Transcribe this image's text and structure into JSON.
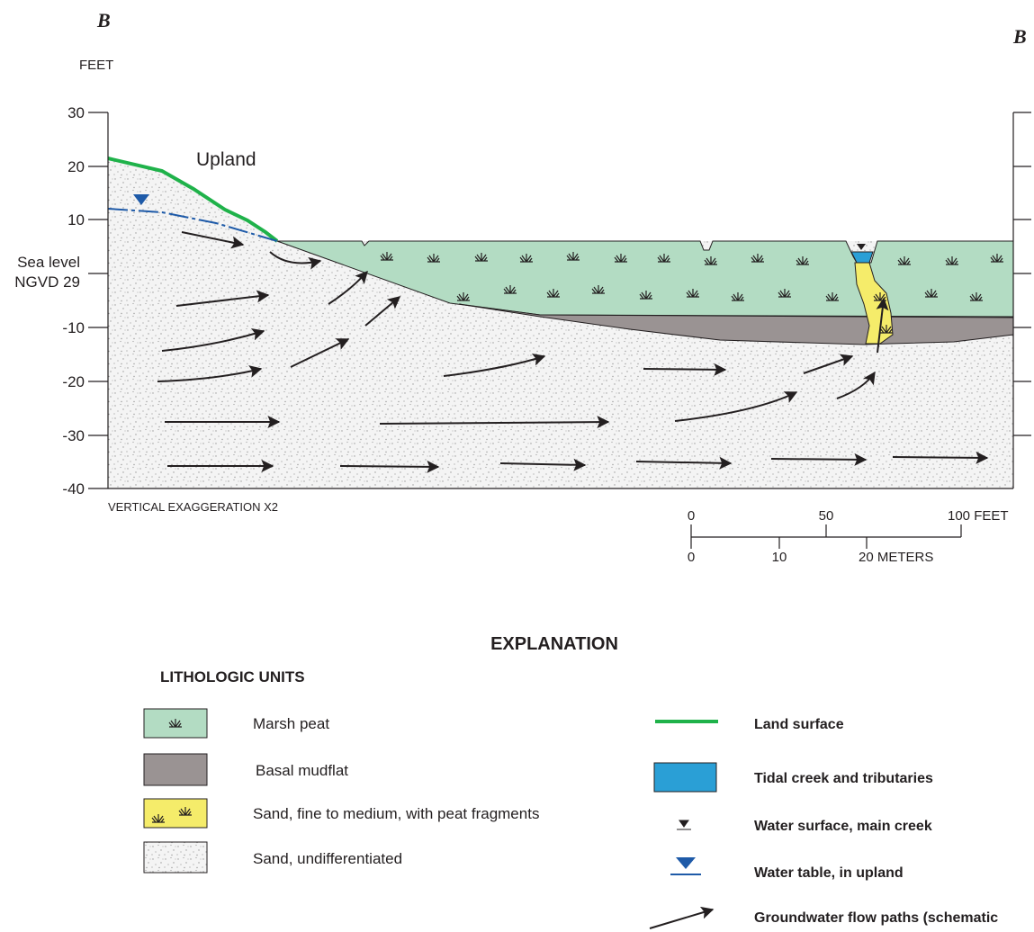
{
  "section_labels": {
    "left": "B",
    "right": "B"
  },
  "axis": {
    "unit": "FEET",
    "ticks": [
      "30",
      "20",
      "10",
      "-10",
      "-20",
      "-30",
      "-40"
    ],
    "sea_level": [
      "Sea level",
      "NGVD 29"
    ]
  },
  "annotations": {
    "upland": "Upland",
    "exaggeration": "VERTICAL EXAGGERATION X2"
  },
  "scale_bar": {
    "feet": [
      "0",
      "50",
      "100 FEET"
    ],
    "meters": [
      "0",
      "10",
      "20 METERS"
    ]
  },
  "explanation": {
    "title": "EXPLANATION",
    "lithologic_title": "LITHOLOGIC UNITS",
    "lithologic_units": [
      "Marsh peat",
      "Basal mudflat",
      "Sand, fine to medium, with peat fragments",
      "Sand, undifferentiated"
    ],
    "symbols": [
      "Land surface",
      "Tidal creek and tributaries",
      "Water surface, main creek",
      "Water table, in upland",
      "Groundwater flow paths (schematic"
    ]
  }
}
